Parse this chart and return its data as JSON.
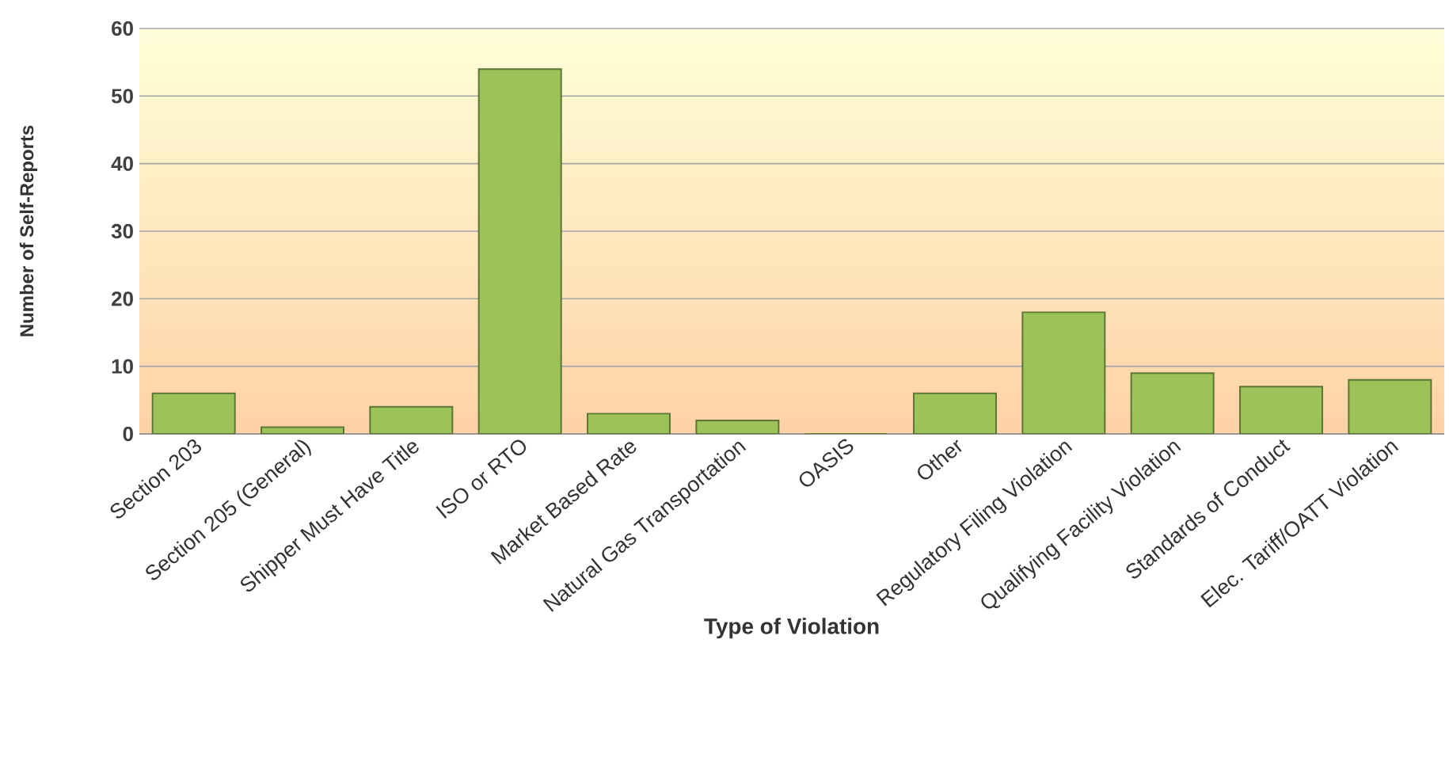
{
  "chart_data": {
    "type": "bar",
    "categories": [
      "Section 203",
      "Section 205 (General)",
      "Shipper Must Have Title",
      "ISO or RTO",
      "Market Based Rate",
      "Natural Gas Transportation",
      "OASIS",
      "Other",
      "Regulatory Filing Violation",
      "Qualifying Facility Violation",
      "Standards of Conduct",
      "Elec. Tariff/OATT Violation"
    ],
    "values": [
      6,
      1,
      4,
      54,
      3,
      2,
      0,
      6,
      18,
      9,
      7,
      8
    ],
    "color": "#9bc35a",
    "xlabel": "Type of Violation",
    "ylabel": "Number of Self-Reports",
    "ylim": [
      0,
      60
    ],
    "yticks": [
      0,
      10,
      20,
      30,
      40,
      50,
      60
    ],
    "grid": "y"
  }
}
